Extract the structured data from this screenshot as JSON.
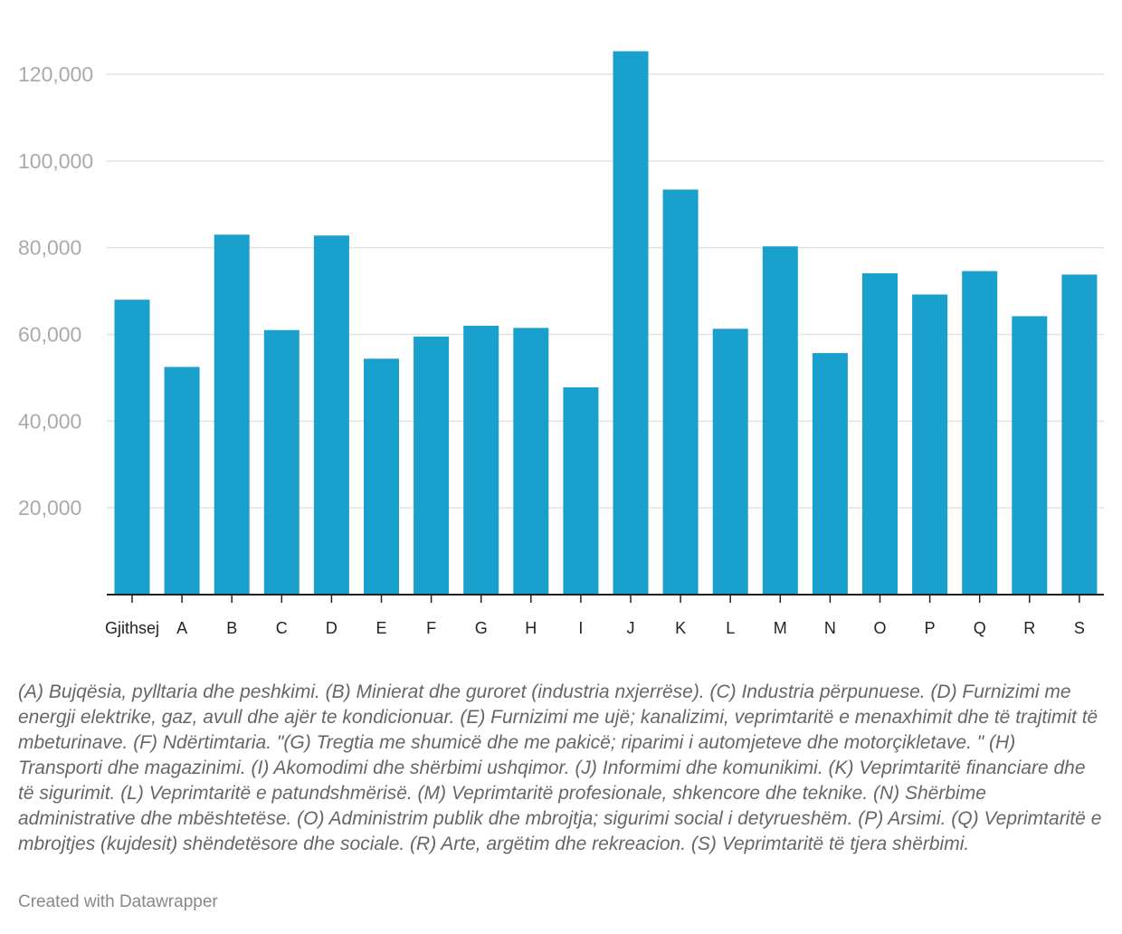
{
  "chart_data": {
    "type": "bar",
    "categories": [
      "Gjithsej",
      "A",
      "B",
      "C",
      "D",
      "E",
      "F",
      "G",
      "H",
      "I",
      "J",
      "K",
      "L",
      "M",
      "N",
      "O",
      "P",
      "Q",
      "R",
      "S"
    ],
    "values": [
      68000,
      52500,
      83000,
      61000,
      82800,
      54400,
      59500,
      62000,
      61500,
      47800,
      125300,
      93400,
      61300,
      80300,
      55700,
      74100,
      69200,
      74600,
      64200,
      73800
    ],
    "ylim": [
      0,
      130000
    ],
    "yticks": [
      20000,
      40000,
      60000,
      80000,
      100000,
      120000
    ],
    "ytick_labels": [
      "20,000",
      "40,000",
      "60,000",
      "80,000",
      "100,000",
      "120,000"
    ],
    "grid": true,
    "bar_color": "#1aa0cc",
    "gridline_color": "#e2e2e2",
    "axis_color": "#222222"
  },
  "notes": "(A) Bujqësia, pylltaria dhe peshkimi. (B) Minierat dhe guroret (industria nxjerrëse). (C) Industria përpunuese. (D) Furnizimi me energji elektrike, gaz, avull dhe ajër te kondicionuar. (E) Furnizimi me ujë; kanalizimi, veprimtaritë e menaxhimit dhe të trajtimit të mbeturinave. (F) Ndërtimtaria. \"(G) Tregtia me shumicë dhe me pakicë; riparimi i automjeteve dhe motorçikletave. \" (H) Transporti dhe magazinimi. (I) Akomodimi dhe shërbimi ushqimor. (J) Informimi dhe komunikimi. (K) Veprimtaritë financiare dhe të sigurimit. (L) Veprimtaritë e patundshmërisë. (M) Veprimtaritë profesionale, shkencore dhe teknike. (N) Shërbime administrative dhe mbështetëse. (O) Administrim publik dhe mbrojtja; sigurimi social i detyrueshëm. (P) Arsimi. (Q) Veprimtaritë e mbrojtjes (kujdesit) shëndetësore dhe sociale. (R) Arte, argëtim dhe rekreacion. (S) Veprimtaritë të tjera shërbimi.",
  "credit": "Created with Datawrapper"
}
